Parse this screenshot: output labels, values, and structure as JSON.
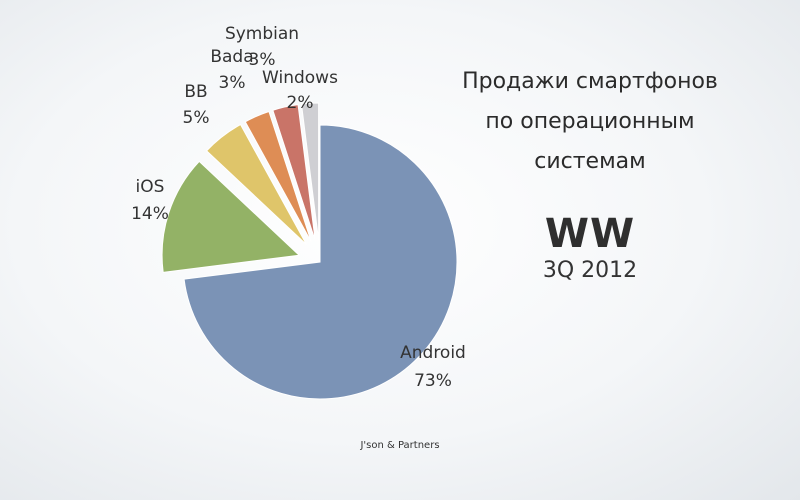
{
  "title_lines": [
    "Продажи смартфонов",
    "по операционным",
    "системам"
  ],
  "region": "WW",
  "period": "3Q 2012",
  "source": "J'son & Partners",
  "chart_data": {
    "type": "pie",
    "title": "Продажи смартфонов по операционным системам",
    "categories": [
      "Android",
      "iOS",
      "BB",
      "Bada",
      "Symbian",
      "Windows"
    ],
    "values": [
      73,
      14,
      5,
      3,
      3,
      2
    ],
    "value_labels": [
      "73%",
      "14%",
      "5%",
      "3%",
      "3%",
      "2%"
    ],
    "colors": [
      "#7b93b6",
      "#93b266",
      "#dfc56a",
      "#de8d55",
      "#c97468",
      "#cfcfd3"
    ],
    "exploded": [
      "iOS",
      "BB",
      "Bada",
      "Symbian",
      "Windows"
    ],
    "legend": "none"
  }
}
